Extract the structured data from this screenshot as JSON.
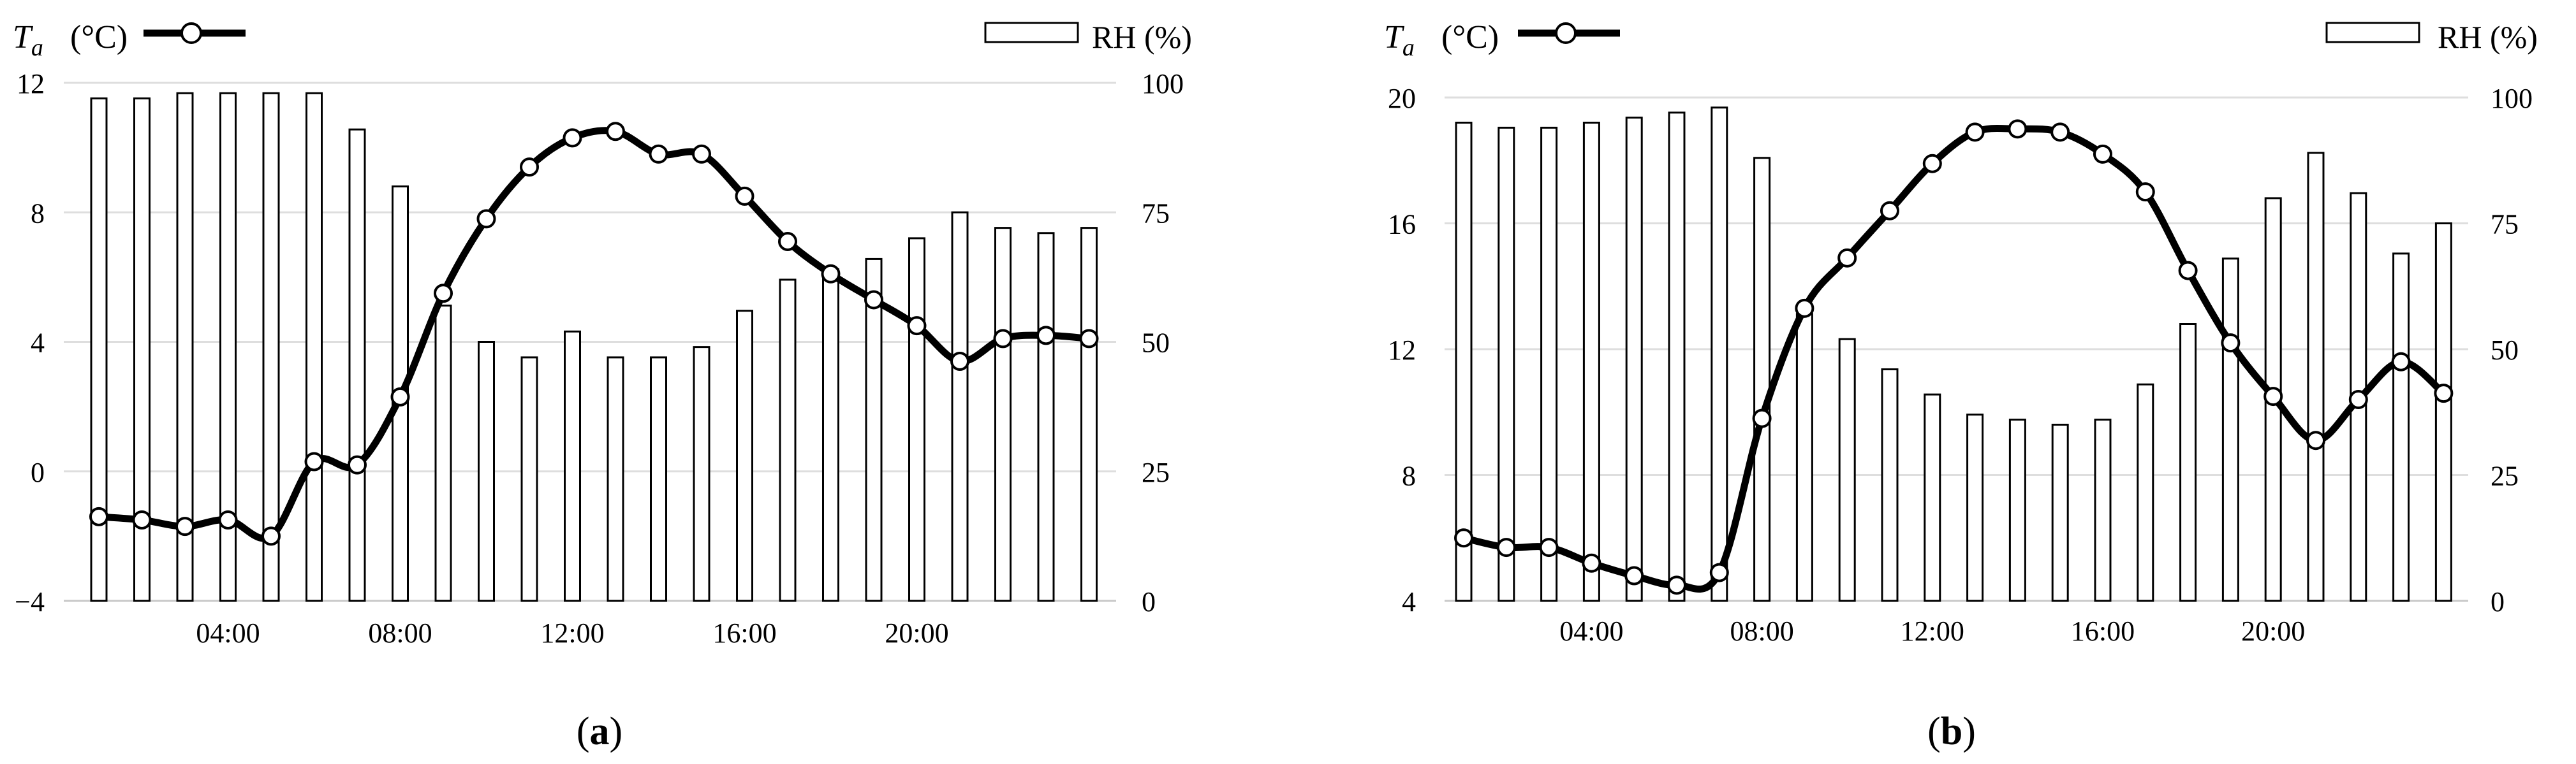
{
  "panels": [
    {
      "caption": "a",
      "left_axis_var": "T",
      "left_axis_sub": "a",
      "left_axis_unit": "(°C)",
      "right_axis_label": "RH (%)"
    },
    {
      "caption": "b",
      "left_axis_var": "T",
      "left_axis_sub": "a",
      "left_axis_unit": "(°C)",
      "right_axis_label": "RH (%)"
    }
  ],
  "chart_data": [
    {
      "type": "bar+line",
      "x_hours": [
        1,
        2,
        3,
        4,
        5,
        6,
        7,
        8,
        9,
        10,
        11,
        12,
        13,
        14,
        15,
        16,
        17,
        18,
        19,
        20,
        21,
        22,
        23,
        24
      ],
      "x_tick_labels": [
        "04:00",
        "08:00",
        "12:00",
        "16:00",
        "20:00"
      ],
      "x_tick_hours": [
        4,
        8,
        12,
        16,
        20
      ],
      "left_axis": {
        "ticks": [
          "−4",
          "0",
          "4",
          "8",
          "12"
        ],
        "ylim": [
          -4,
          12
        ]
      },
      "right_axis": {
        "ticks": [
          "0",
          "25",
          "50",
          "75",
          "100"
        ],
        "ylim": [
          0,
          100
        ]
      },
      "series": [
        {
          "name": "RH (%)",
          "type": "bar",
          "axis": "right",
          "values": [
            97,
            97,
            98,
            98,
            98,
            98,
            91,
            80,
            57,
            50,
            47,
            52,
            47,
            47,
            49,
            56,
            62,
            64,
            66,
            70,
            75,
            72,
            71,
            72
          ]
        },
        {
          "name": "Ta (°C)",
          "type": "line",
          "axis": "left",
          "values": [
            -1.4,
            -1.5,
            -1.7,
            -1.5,
            -2.0,
            0.3,
            0.2,
            2.3,
            5.5,
            7.8,
            9.4,
            10.3,
            10.5,
            9.8,
            9.8,
            8.5,
            7.1,
            6.1,
            5.3,
            4.5,
            3.4,
            4.1,
            4.2,
            4.1
          ]
        }
      ]
    },
    {
      "type": "bar+line",
      "x_hours": [
        1,
        2,
        3,
        4,
        5,
        6,
        7,
        8,
        9,
        10,
        11,
        12,
        13,
        14,
        15,
        16,
        17,
        18,
        19,
        20,
        21,
        22,
        23,
        24
      ],
      "x_tick_labels": [
        "04:00",
        "08:00",
        "12:00",
        "16:00",
        "20:00"
      ],
      "x_tick_hours": [
        4,
        8,
        12,
        16,
        20
      ],
      "left_axis": {
        "ticks": [
          "4",
          "8",
          "12",
          "16",
          "20"
        ],
        "ylim": [
          4,
          20
        ]
      },
      "right_axis": {
        "ticks": [
          "0",
          "25",
          "50",
          "75",
          "100"
        ],
        "ylim": [
          0,
          100
        ]
      },
      "series": [
        {
          "name": "RH (%)",
          "type": "bar",
          "axis": "right",
          "values": [
            95,
            94,
            94,
            95,
            96,
            97,
            98,
            88,
            57,
            52,
            46,
            41,
            37,
            36,
            35,
            36,
            43,
            55,
            68,
            80,
            89,
            81,
            69,
            75
          ]
        },
        {
          "name": "Ta (°C)",
          "type": "line",
          "axis": "left",
          "values": [
            6.0,
            5.7,
            5.7,
            5.2,
            4.8,
            4.5,
            4.9,
            9.8,
            13.3,
            14.9,
            16.4,
            17.9,
            18.9,
            19.0,
            18.9,
            18.2,
            17.0,
            14.5,
            12.2,
            10.5,
            9.1,
            10.4,
            11.6,
            10.6
          ]
        }
      ]
    }
  ]
}
